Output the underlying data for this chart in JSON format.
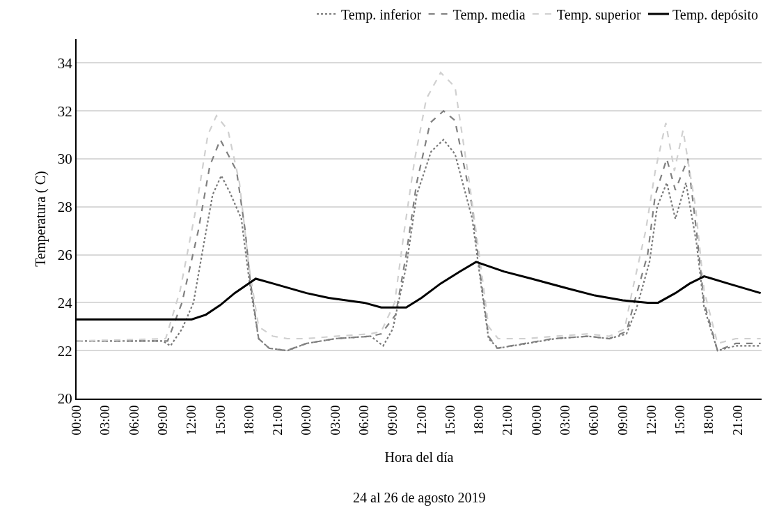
{
  "chart_data": {
    "type": "line",
    "xlabel": "Hora del día",
    "ylabel": "Temperatura ( C)",
    "annotations": [
      "24 al 26 de agosto 2019"
    ],
    "xlim": [
      "2019-08-24T00:00",
      "2019-08-26T23:30"
    ],
    "xticks": [
      {
        "value": "2019-08-24T00:00",
        "label": "00:00"
      },
      {
        "value": "2019-08-24T03:00",
        "label": "03:00"
      },
      {
        "value": "2019-08-24T06:00",
        "label": "06:00"
      },
      {
        "value": "2019-08-24T09:00",
        "label": "09:00"
      },
      {
        "value": "2019-08-24T12:00",
        "label": "12:00"
      },
      {
        "value": "2019-08-24T15:00",
        "label": "15:00"
      },
      {
        "value": "2019-08-24T18:00",
        "label": "18:00"
      },
      {
        "value": "2019-08-24T21:00",
        "label": "21:00"
      },
      {
        "value": "2019-08-25T00:00",
        "label": "00:00"
      },
      {
        "value": "2019-08-25T03:00",
        "label": "03:00"
      },
      {
        "value": "2019-08-25T06:00",
        "label": "06:00"
      },
      {
        "value": "2019-08-25T09:00",
        "label": "09:00"
      },
      {
        "value": "2019-08-25T12:00",
        "label": "12:00"
      },
      {
        "value": "2019-08-25T15:00",
        "label": "15:00"
      },
      {
        "value": "2019-08-25T18:00",
        "label": "18:00"
      },
      {
        "value": "2019-08-25T21:00",
        "label": "21:00"
      },
      {
        "value": "2019-08-26T00:00",
        "label": "00:00"
      },
      {
        "value": "2019-08-26T03:00",
        "label": "03:00"
      },
      {
        "value": "2019-08-26T06:00",
        "label": "06:00"
      },
      {
        "value": "2019-08-26T09:00",
        "label": "09:00"
      },
      {
        "value": "2019-08-26T12:00",
        "label": "12:00"
      },
      {
        "value": "2019-08-26T15:00",
        "label": "15:00"
      },
      {
        "value": "2019-08-26T18:00",
        "label": "18:00"
      },
      {
        "value": "2019-08-26T21:00",
        "label": "21:00"
      }
    ],
    "ylim": [
      20,
      35
    ],
    "yticks": [
      20,
      22,
      24,
      26,
      28,
      30,
      32,
      34
    ],
    "grid": "y",
    "legend": "top",
    "marker": "none",
    "series": [
      {
        "name": "Temp. inferior",
        "color": "#7a7a7a",
        "line_style": "dotted",
        "x": [
          "2019-08-24T00:00",
          "2019-08-24T09:00",
          "2019-08-24T09:48",
          "2019-08-24T11:00",
          "2019-08-24T12:12",
          "2019-08-24T13:18",
          "2019-08-24T14:12",
          "2019-08-24T15:06",
          "2019-08-24T16:00",
          "2019-08-24T17:12",
          "2019-08-24T18:00",
          "2019-08-24T19:00",
          "2019-08-24T20:06",
          "2019-08-24T22:00",
          "2019-08-25T00:00",
          "2019-08-25T03:00",
          "2019-08-25T06:42",
          "2019-08-25T08:00",
          "2019-08-25T09:00",
          "2019-08-25T10:24",
          "2019-08-25T11:30",
          "2019-08-25T13:00",
          "2019-08-25T14:18",
          "2019-08-25T15:30",
          "2019-08-25T17:18",
          "2019-08-25T18:12",
          "2019-08-25T19:00",
          "2019-08-25T20:00",
          "2019-08-25T23:00",
          "2019-08-26T02:00",
          "2019-08-26T05:24",
          "2019-08-26T07:36",
          "2019-08-26T09:24",
          "2019-08-26T10:24",
          "2019-08-26T11:48",
          "2019-08-26T12:36",
          "2019-08-26T13:36",
          "2019-08-26T14:30",
          "2019-08-26T15:36",
          "2019-08-26T16:42",
          "2019-08-26T17:30",
          "2019-08-26T18:54",
          "2019-08-26T20:48",
          "2019-08-26T23:24"
        ],
        "values": [
          22.4,
          22.4,
          22.2,
          22.9,
          24,
          26.5,
          28.5,
          29.3,
          28.6,
          27.5,
          25,
          22.5,
          22.1,
          22.0,
          22.3,
          22.5,
          22.6,
          22.2,
          22.9,
          25.5,
          28.5,
          30.3,
          30.8,
          30.2,
          27.5,
          24.8,
          22.5,
          22.1,
          22.3,
          22.5,
          22.6,
          22.5,
          22.7,
          23.7,
          25.7,
          28.0,
          29.0,
          27.5,
          29.0,
          26.5,
          23.8,
          22.0,
          22.2,
          22.2
        ]
      },
      {
        "name": "Temp. media",
        "color": "#808080",
        "line_style": "dashed",
        "x": [
          "2019-08-24T00:00",
          "2019-08-24T09:30",
          "2019-08-24T11:00",
          "2019-08-24T12:42",
          "2019-08-24T13:54",
          "2019-08-24T15:00",
          "2019-08-24T16:42",
          "2019-08-24T17:36",
          "2019-08-24T18:06",
          "2019-08-24T19:00",
          "2019-08-24T20:06",
          "2019-08-24T21:54",
          "2019-08-25T00:00",
          "2019-08-25T03:00",
          "2019-08-25T06:42",
          "2019-08-25T07:48",
          "2019-08-25T09:18",
          "2019-08-25T10:24",
          "2019-08-25T11:30",
          "2019-08-25T12:54",
          "2019-08-25T14:18",
          "2019-08-25T15:30",
          "2019-08-25T17:18",
          "2019-08-25T18:12",
          "2019-08-25T19:00",
          "2019-08-25T19:54",
          "2019-08-25T22:48",
          "2019-08-26T01:42",
          "2019-08-26T05:24",
          "2019-08-26T07:36",
          "2019-08-26T09:24",
          "2019-08-26T10:12",
          "2019-08-26T11:36",
          "2019-08-26T12:24",
          "2019-08-26T13:36",
          "2019-08-26T14:30",
          "2019-08-26T15:48",
          "2019-08-26T16:42",
          "2019-08-26T17:30",
          "2019-08-26T18:54",
          "2019-08-26T20:48",
          "2019-08-26T23:24"
        ],
        "values": [
          22.4,
          22.4,
          24,
          27,
          29.7,
          30.8,
          29.5,
          27,
          25,
          22.5,
          22.1,
          22.0,
          22.3,
          22.5,
          22.6,
          22.7,
          23.5,
          26,
          29,
          31.5,
          32.0,
          31.6,
          28,
          25,
          22.6,
          22.1,
          22.3,
          22.5,
          22.6,
          22.5,
          22.8,
          24,
          26,
          28.5,
          30.0,
          28.7,
          30.0,
          27,
          24,
          22.0,
          22.3,
          22.3
        ]
      },
      {
        "name": "Temp. superior",
        "color": "#d0d0d0",
        "line_style": "dashed",
        "x": [
          "2019-08-24T00:00",
          "2019-08-24T09:18",
          "2019-08-24T10:48",
          "2019-08-24T12:30",
          "2019-08-24T13:42",
          "2019-08-24T14:36",
          "2019-08-24T15:48",
          "2019-08-24T17:00",
          "2019-08-24T18:00",
          "2019-08-24T19:00",
          "2019-08-24T20:30",
          "2019-08-24T22:00",
          "2019-08-25T00:00",
          "2019-08-25T03:00",
          "2019-08-25T06:42",
          "2019-08-25T07:48",
          "2019-08-25T09:12",
          "2019-08-25T10:12",
          "2019-08-25T11:18",
          "2019-08-25T12:30",
          "2019-08-25T14:00",
          "2019-08-25T15:30",
          "2019-08-25T17:00",
          "2019-08-25T18:12",
          "2019-08-25T19:00",
          "2019-08-25T20:00",
          "2019-08-25T23:00",
          "2019-08-26T02:00",
          "2019-08-26T05:24",
          "2019-08-26T07:36",
          "2019-08-26T09:12",
          "2019-08-26T10:00",
          "2019-08-26T11:24",
          "2019-08-26T12:24",
          "2019-08-26T13:30",
          "2019-08-26T14:24",
          "2019-08-26T15:18",
          "2019-08-26T16:36",
          "2019-08-26T17:30",
          "2019-08-26T18:54",
          "2019-08-26T20:48",
          "2019-08-26T23:24"
        ],
        "values": [
          22.4,
          22.5,
          24.5,
          28,
          31.0,
          31.8,
          31.2,
          29,
          25.5,
          23,
          22.6,
          22.5,
          22.5,
          22.6,
          22.7,
          22.8,
          24,
          27,
          30,
          32.5,
          33.6,
          33.0,
          29,
          25.5,
          23,
          22.5,
          22.5,
          22.6,
          22.7,
          22.6,
          22.9,
          24.5,
          27,
          29.5,
          31.5,
          29.5,
          31.2,
          28,
          24.5,
          22.3,
          22.5,
          22.5
        ]
      },
      {
        "name": "Temp. depósito",
        "color": "#000000",
        "line_style": "solid",
        "x": [
          "2019-08-24T00:00",
          "2019-08-24T12:00",
          "2019-08-24T13:30",
          "2019-08-24T15:00",
          "2019-08-24T16:30",
          "2019-08-24T18:42",
          "2019-08-24T20:30",
          "2019-08-25T00:00",
          "2019-08-25T02:18",
          "2019-08-25T06:00",
          "2019-08-25T07:48",
          "2019-08-25T10:24",
          "2019-08-25T12:00",
          "2019-08-25T14:00",
          "2019-08-25T16:00",
          "2019-08-25T17:42",
          "2019-08-25T20:36",
          "2019-08-25T23:30",
          "2019-08-26T03:12",
          "2019-08-26T06:06",
          "2019-08-26T09:00",
          "2019-08-26T11:36",
          "2019-08-26T12:42",
          "2019-08-26T14:30",
          "2019-08-26T16:00",
          "2019-08-26T17:30",
          "2019-08-26T20:00",
          "2019-08-26T23:24"
        ],
        "values": [
          23.3,
          23.3,
          23.5,
          23.9,
          24.4,
          25.0,
          24.8,
          24.4,
          24.2,
          24.0,
          23.8,
          23.8,
          24.2,
          24.8,
          25.3,
          25.7,
          25.3,
          25.0,
          24.6,
          24.3,
          24.1,
          24.0,
          24.0,
          24.4,
          24.8,
          25.1,
          24.8,
          24.4
        ]
      }
    ]
  }
}
